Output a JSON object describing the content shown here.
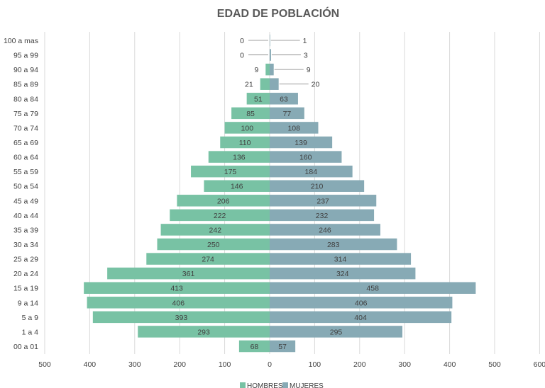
{
  "chart_data": {
    "type": "bar",
    "orientation": "horizontal-population-pyramid",
    "title": "EDAD DE POBLACIÓN",
    "categories": [
      "00 a 01",
      "1 a 4",
      "5 a 9",
      "9 a 14",
      "15 a 19",
      "20 a 24",
      "25 a 29",
      "30 a 34",
      "35 a 39",
      "40 a 44",
      "45 a 49",
      "50 a 54",
      "55 a 59",
      "60 a 64",
      "65 a 69",
      "70 a 74",
      "75 a 79",
      "80 a 84",
      "85 a 89",
      "90 a 94",
      "95 a 99",
      "100 a mas"
    ],
    "series": [
      {
        "name": "HOMBRES",
        "color": "#78c2a4",
        "direction": "left",
        "values": [
          68,
          293,
          393,
          406,
          413,
          361,
          274,
          250,
          242,
          222,
          206,
          146,
          175,
          136,
          110,
          100,
          85,
          51,
          21,
          9,
          0,
          0
        ]
      },
      {
        "name": "MUJERES",
        "color": "#87aab5",
        "direction": "right",
        "values": [
          57,
          295,
          404,
          406,
          458,
          324,
          314,
          283,
          246,
          232,
          237,
          210,
          184,
          160,
          139,
          108,
          77,
          63,
          20,
          9,
          3,
          1
        ]
      }
    ],
    "x_ticks": [
      "500",
      "400",
      "300",
      "200",
      "100",
      "0",
      "100",
      "200",
      "300",
      "400",
      "500",
      "600"
    ],
    "xlim": [
      -500,
      600
    ],
    "grid": "vertical",
    "legend_position": "bottom-center"
  }
}
